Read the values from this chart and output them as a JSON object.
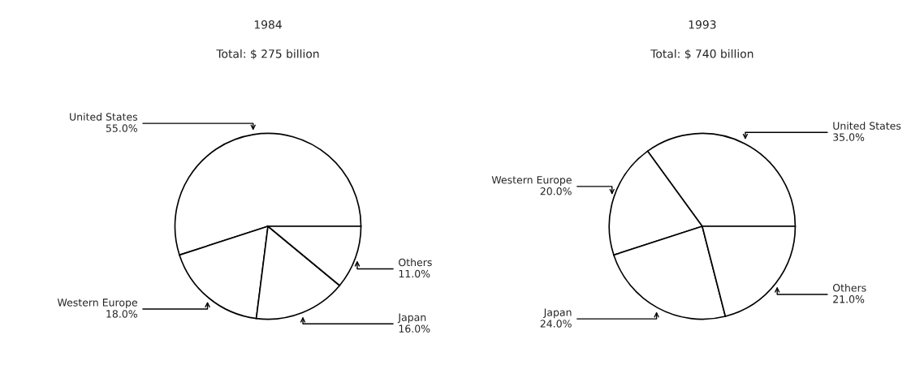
{
  "chart_data": [
    {
      "type": "pie",
      "title": "1984",
      "subtitle": "Total: $ 275 billion",
      "categories": [
        "United States",
        "Western Europe",
        "Japan",
        "Others"
      ],
      "values": [
        55.0,
        18.0,
        16.0,
        11.0
      ],
      "value_labels": [
        "55.0%",
        "18.0%",
        "16.0%",
        "11.0%"
      ],
      "colors": [
        "#ffffff",
        "#ffffff",
        "#ffffff",
        "#ffffff"
      ]
    },
    {
      "type": "pie",
      "title": "1993",
      "subtitle": "Total: $ 740 billion",
      "categories": [
        "United States",
        "Western Europe",
        "Japan",
        "Others"
      ],
      "values": [
        35.0,
        20.0,
        24.0,
        21.0
      ],
      "value_labels": [
        "35.0%",
        "20.0%",
        "24.0%",
        "21.0%"
      ],
      "colors": [
        "#ffffff",
        "#ffffff",
        "#ffffff",
        "#ffffff"
      ]
    }
  ]
}
